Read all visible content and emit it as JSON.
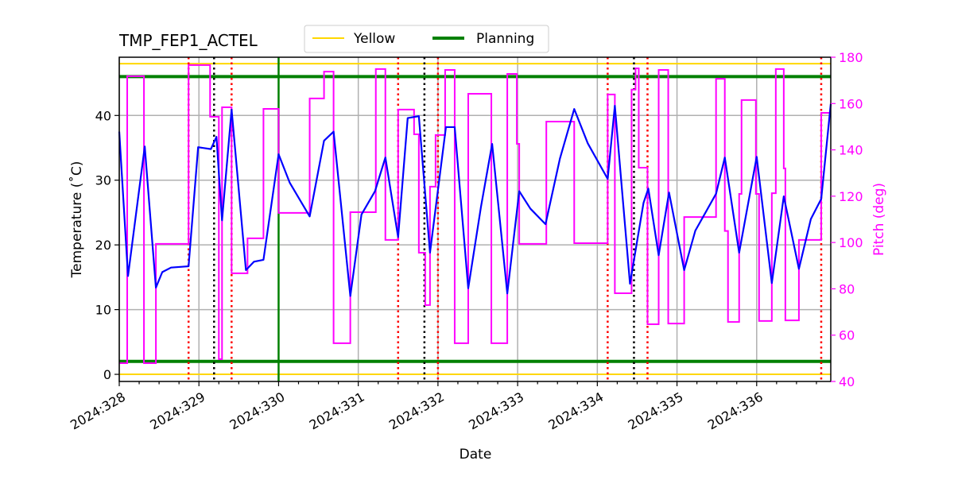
{
  "chart_data": {
    "type": "line",
    "title": "TMP_FEP1_ACTEL",
    "xlabel": "Date",
    "ylabel": "Temperature ($^\\circ$C)",
    "ylabel_display": "Temperature (˚C)",
    "y2label": "Pitch (deg)",
    "xlim": [
      328.0,
      336.93
    ],
    "ylim": [
      -1.1,
      49.0
    ],
    "y2lim": [
      40,
      180
    ],
    "grid": true,
    "legend_placement": "top-center",
    "x_ticks": [
      328,
      329,
      330,
      331,
      332,
      333,
      334,
      335,
      336
    ],
    "x_tick_labels": [
      "2024:328",
      "2024:329",
      "2024:330",
      "2024:331",
      "2024:332",
      "2024:333",
      "2024:334",
      "2024:335",
      "2024:336"
    ],
    "y_ticks": [
      0,
      10,
      20,
      30,
      40
    ],
    "y2_ticks": [
      40,
      60,
      80,
      100,
      120,
      140,
      160,
      180
    ],
    "legend": [
      {
        "name": "Yellow",
        "color": "#ffd700"
      },
      {
        "name": "Planning",
        "color": "#008000"
      }
    ],
    "limits": {
      "yellow": [
        0,
        48
      ],
      "planning": [
        2,
        46
      ]
    },
    "vlines": {
      "green_solid": [
        330.0
      ],
      "red_dotted": [
        328.87,
        329.41,
        331.5,
        332.0,
        334.13,
        334.63,
        336.81
      ],
      "black_dotted": [
        329.19,
        331.83,
        334.46
      ]
    },
    "colors": {
      "temperature": "#0000ff",
      "pitch": "#ff00ff",
      "red": "#ff0000",
      "black": "#000000",
      "grid": "#b0b0b0"
    },
    "temperature": [
      [
        328.0,
        37.5
      ],
      [
        328.11,
        15.2
      ],
      [
        328.32,
        35.2
      ],
      [
        328.46,
        13.4
      ],
      [
        328.54,
        15.8
      ],
      [
        328.65,
        16.5
      ],
      [
        328.87,
        16.7
      ],
      [
        328.99,
        35.1
      ],
      [
        329.15,
        34.8
      ],
      [
        329.22,
        36.7
      ],
      [
        329.29,
        23.8
      ],
      [
        329.41,
        40.9
      ],
      [
        329.59,
        16.1
      ],
      [
        329.69,
        17.4
      ],
      [
        329.81,
        17.7
      ],
      [
        330.0,
        34.0
      ],
      [
        330.14,
        29.6
      ],
      [
        330.39,
        24.4
      ],
      [
        330.57,
        36.1
      ],
      [
        330.69,
        37.5
      ],
      [
        330.9,
        12.1
      ],
      [
        331.04,
        24.7
      ],
      [
        331.21,
        28.3
      ],
      [
        331.34,
        33.5
      ],
      [
        331.5,
        21.2
      ],
      [
        331.62,
        39.6
      ],
      [
        331.76,
        39.9
      ],
      [
        331.9,
        18.8
      ],
      [
        332.1,
        38.2
      ],
      [
        332.21,
        38.2
      ],
      [
        332.38,
        13.3
      ],
      [
        332.54,
        25.9
      ],
      [
        332.68,
        35.6
      ],
      [
        332.87,
        12.5
      ],
      [
        333.02,
        28.3
      ],
      [
        333.16,
        25.6
      ],
      [
        333.35,
        23.2
      ],
      [
        333.53,
        33.3
      ],
      [
        333.71,
        41.0
      ],
      [
        333.88,
        35.7
      ],
      [
        334.13,
        30.2
      ],
      [
        334.22,
        41.5
      ],
      [
        334.41,
        14.0
      ],
      [
        334.58,
        26.5
      ],
      [
        334.64,
        28.7
      ],
      [
        334.77,
        18.4
      ],
      [
        334.9,
        28.1
      ],
      [
        335.09,
        16.1
      ],
      [
        335.23,
        22.2
      ],
      [
        335.49,
        27.9
      ],
      [
        335.6,
        33.5
      ],
      [
        335.78,
        18.8
      ],
      [
        336.0,
        33.6
      ],
      [
        336.19,
        14.1
      ],
      [
        336.34,
        27.5
      ],
      [
        336.53,
        16.3
      ],
      [
        336.68,
        24.0
      ],
      [
        336.81,
        27.1
      ],
      [
        336.93,
        41.8
      ]
    ],
    "pitch_step": [
      [
        328.0,
        47.9
      ],
      [
        328.1,
        171.8
      ],
      [
        328.31,
        47.9
      ],
      [
        328.46,
        99.4
      ],
      [
        328.87,
        176.6
      ],
      [
        329.14,
        154.3
      ],
      [
        329.25,
        49.6
      ],
      [
        329.29,
        158.4
      ],
      [
        329.41,
        86.7
      ],
      [
        329.61,
        101.8
      ],
      [
        329.81,
        157.7
      ],
      [
        330.0,
        112.8
      ],
      [
        330.39,
        162.2
      ],
      [
        330.57,
        173.8
      ],
      [
        330.69,
        56.5
      ],
      [
        330.9,
        113.1
      ],
      [
        331.22,
        174.9
      ],
      [
        331.34,
        101.1
      ],
      [
        331.5,
        157.4
      ],
      [
        331.7,
        146.7
      ],
      [
        331.76,
        95.6
      ],
      [
        331.84,
        73.0
      ],
      [
        331.9,
        124.1
      ],
      [
        331.97,
        146.4
      ],
      [
        332.09,
        174.5
      ],
      [
        332.21,
        56.5
      ],
      [
        332.38,
        164.2
      ],
      [
        332.67,
        56.5
      ],
      [
        332.87,
        172.8
      ],
      [
        332.99,
        142.6
      ],
      [
        333.02,
        99.4
      ],
      [
        333.36,
        152.2
      ],
      [
        333.71,
        99.7
      ],
      [
        334.13,
        163.9
      ],
      [
        334.22,
        78.1
      ],
      [
        334.43,
        166.0
      ],
      [
        334.48,
        175.2
      ],
      [
        334.52,
        132.3
      ],
      [
        334.63,
        64.7
      ],
      [
        334.77,
        174.5
      ],
      [
        334.89,
        65.0
      ],
      [
        335.09,
        111.0
      ],
      [
        335.49,
        170.7
      ],
      [
        335.6,
        105.0
      ],
      [
        335.64,
        65.7
      ],
      [
        335.78,
        121.0
      ],
      [
        335.81,
        161.5
      ],
      [
        335.99,
        121.0
      ],
      [
        336.03,
        66.1
      ],
      [
        336.19,
        121.3
      ],
      [
        336.24,
        174.9
      ],
      [
        336.34,
        132.0
      ],
      [
        336.36,
        66.4
      ],
      [
        336.53,
        101.1
      ],
      [
        336.81,
        156.0
      ],
      [
        336.93,
        156.0
      ]
    ]
  }
}
